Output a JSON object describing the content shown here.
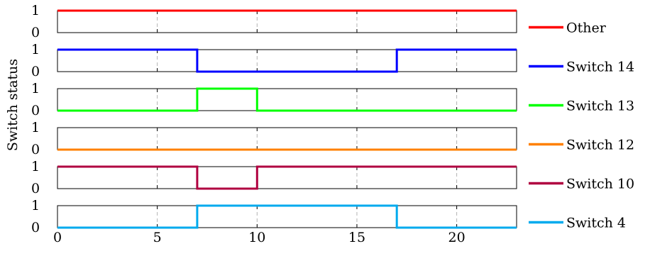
{
  "chart_data": {
    "type": "line",
    "step": true,
    "ylabel": "Switch status",
    "xlim": [
      0,
      23
    ],
    "ylim": [
      0,
      1
    ],
    "xticks": [
      0,
      5,
      10,
      15,
      20
    ],
    "yticks": [
      0,
      1
    ],
    "grid": "vertical dashed",
    "legend": "right",
    "series": [
      {
        "name": "Other",
        "color": "#ff0000",
        "x": [
          0,
          23
        ],
        "y": [
          1,
          1
        ]
      },
      {
        "name": "Switch 14",
        "color": "#0000ff",
        "x": [
          0,
          7,
          7,
          17,
          17,
          23
        ],
        "y": [
          1,
          1,
          0,
          0,
          1,
          1
        ]
      },
      {
        "name": "Switch 13",
        "color": "#00ff00",
        "x": [
          0,
          7,
          7,
          10,
          10,
          23
        ],
        "y": [
          0,
          0,
          1,
          1,
          0,
          0
        ]
      },
      {
        "name": "Switch 12",
        "color": "#ff8000",
        "x": [
          0,
          23
        ],
        "y": [
          0,
          0
        ]
      },
      {
        "name": "Switch 10",
        "color": "#b00040",
        "x": [
          0,
          7,
          7,
          10,
          10,
          23
        ],
        "y": [
          1,
          1,
          0,
          0,
          1,
          1
        ]
      },
      {
        "name": "Switch 4",
        "color": "#00aaee",
        "x": [
          0,
          7,
          7,
          17,
          17,
          23
        ],
        "y": [
          0,
          0,
          1,
          1,
          0,
          0
        ]
      }
    ]
  }
}
